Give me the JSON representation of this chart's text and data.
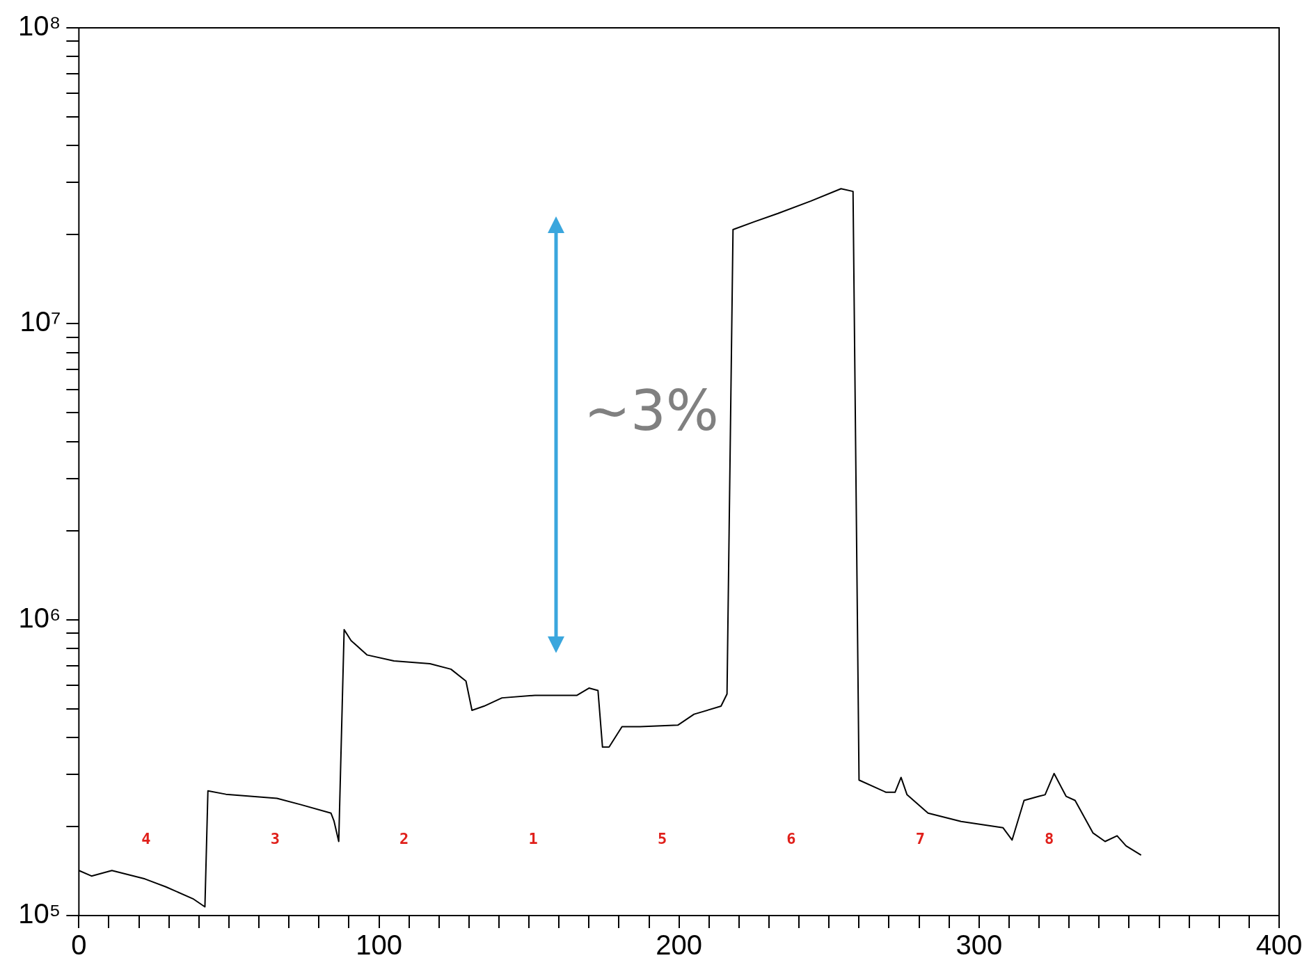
{
  "chart_data": {
    "type": "line",
    "log": "y",
    "xlim": [
      0,
      400
    ],
    "ylim": [
      100000,
      100000000
    ],
    "xticks": [
      0,
      100,
      200,
      300,
      400
    ],
    "yticks": [
      {
        "value": 100000,
        "label": "10⁵"
      },
      {
        "value": 1000000,
        "label": "10⁶"
      },
      {
        "value": 10000000,
        "label": "10⁷"
      },
      {
        "value": 100000000,
        "label": "10⁸"
      }
    ],
    "grid": false,
    "legend": false,
    "marker": "none",
    "line_style": "solid",
    "series": [
      {
        "color": "#000000",
        "x": [
          0,
          4.2,
          11,
          22,
          29,
          38,
          42,
          43,
          49,
          66,
          74,
          84,
          85,
          86.6,
          88.4,
          90.7,
          96,
          105,
          117,
          124,
          129,
          131,
          135,
          141,
          152,
          166,
          170,
          173,
          174.5,
          176.7,
          181,
          187,
          199.6,
          205,
          214,
          216,
          218,
          225,
          233,
          244,
          254,
          258,
          260,
          269,
          272,
          274,
          276,
          283,
          294,
          308,
          311,
          315,
          320,
          322,
          325,
          329,
          332,
          338,
          342,
          346,
          349,
          354
        ],
        "values": [
          142000,
          136000,
          142000,
          133000,
          125000,
          114000,
          107000,
          264000,
          257000,
          249000,
          237000,
          222000,
          209000,
          178000,
          925000,
          850000,
          760000,
          725000,
          710000,
          680000,
          620000,
          494000,
          510000,
          544000,
          555000,
          555000,
          587000,
          576000,
          371000,
          371000,
          435000,
          435000,
          440000,
          479000,
          510000,
          561000,
          20800000,
          22100000,
          23600000,
          26000000,
          28600000,
          28000000,
          287000,
          261000,
          261000,
          293000,
          256000,
          222000,
          208000,
          198000,
          180000,
          245000,
          253000,
          256000,
          302000,
          253000,
          245000,
          190000,
          178000,
          186000,
          172000,
          160000
        ]
      }
    ],
    "annotations": [
      "4",
      "3",
      "2",
      "1",
      "5",
      "6",
      "7",
      "8",
      "~3%"
    ]
  }
}
